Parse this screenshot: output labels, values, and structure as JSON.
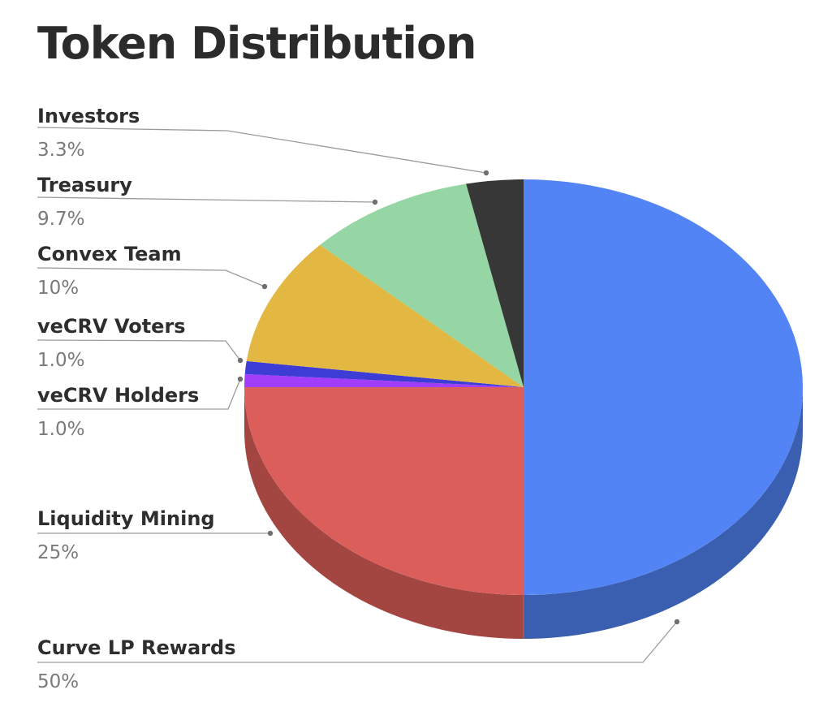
{
  "chart_data": {
    "type": "pie",
    "title": "Token Distribution",
    "series": [
      {
        "label": "Curve LP Rewards",
        "value": 50,
        "display": "50%",
        "color": "#5284f5",
        "side": "#3a5fb0"
      },
      {
        "label": "Liquidity Mining",
        "value": 25,
        "display": "25%",
        "color": "#db5e5b",
        "side": "#a34541"
      },
      {
        "label": "veCRV Holders",
        "value": 1.0,
        "display": "1.0%",
        "color": "#a23dfa",
        "side": "#7a2cc0"
      },
      {
        "label": "veCRV Voters",
        "value": 1.0,
        "display": "1.0%",
        "color": "#3d3dd6",
        "side": "#2c2ca0"
      },
      {
        "label": "Convex Team",
        "value": 10,
        "display": "10%",
        "color": "#e2b742",
        "side": "#a8882f"
      },
      {
        "label": "Treasury",
        "value": 9.7,
        "display": "9.7%",
        "color": "#95d6a4",
        "side": "#6c9c77"
      },
      {
        "label": "Investors",
        "value": 3.3,
        "display": "3.3%",
        "color": "#373737",
        "side": "#222222"
      }
    ],
    "start": "12 o'clock",
    "direction": "clockwise",
    "style": "3D, tilted"
  }
}
